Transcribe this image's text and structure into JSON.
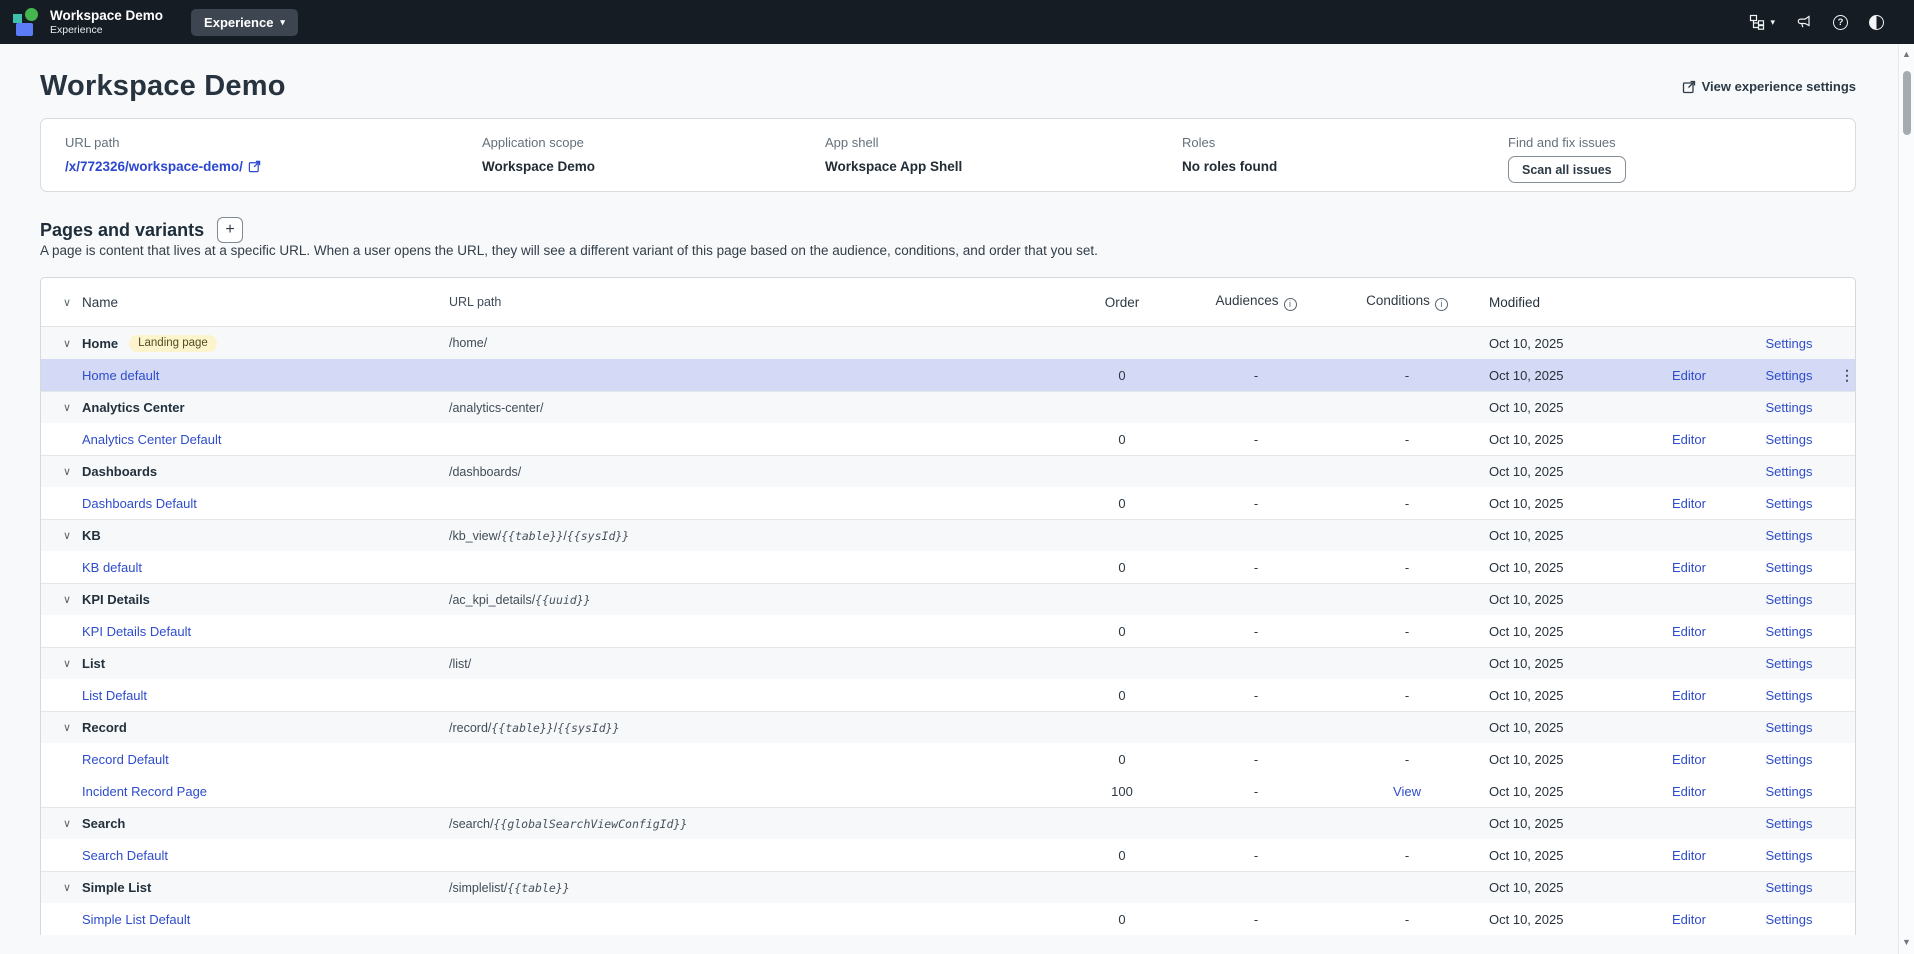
{
  "topbar": {
    "app_title": "Workspace Demo",
    "app_subtitle": "Experience",
    "experience_menu_label": "Experience"
  },
  "page": {
    "title": "Workspace Demo",
    "view_settings_label": "View experience settings"
  },
  "info_card": {
    "url_path_label": "URL path",
    "url_path_value": "/x/772326/workspace-demo/",
    "application_scope_label": "Application scope",
    "application_scope_value": "Workspace Demo",
    "app_shell_label": "App shell",
    "app_shell_value": "Workspace App Shell",
    "roles_label": "Roles",
    "roles_value": "No roles found",
    "issues_label": "Find and fix issues",
    "scan_button_label": "Scan all issues"
  },
  "section": {
    "heading": "Pages and variants",
    "add_button_label": "+",
    "description": "A page is content that lives at a specific URL. When a user opens the URL, they will see a different variant of this page based on the audience, conditions, and order that you set."
  },
  "table": {
    "columns": {
      "name": "Name",
      "url_path": "URL path",
      "order": "Order",
      "audiences": "Audiences",
      "conditions": "Conditions",
      "modified": "Modified"
    },
    "rows": [
      {
        "kind": "page",
        "name": "Home",
        "badge": "Landing page",
        "url": [
          {
            "t": "/home/"
          }
        ],
        "modified": "Oct 10, 2025",
        "settings": "Settings"
      },
      {
        "kind": "variant",
        "name": "Home default",
        "order": "0",
        "audiences": "-",
        "conditions": "-",
        "modified": "Oct 10, 2025",
        "editor": "Editor",
        "settings": "Settings",
        "selected": true,
        "kebab": true
      },
      {
        "kind": "page",
        "name": "Analytics Center",
        "url": [
          {
            "t": "/analytics-center/"
          }
        ],
        "modified": "Oct 10, 2025",
        "settings": "Settings"
      },
      {
        "kind": "variant",
        "name": "Analytics Center Default",
        "order": "0",
        "audiences": "-",
        "conditions": "-",
        "modified": "Oct 10, 2025",
        "editor": "Editor",
        "settings": "Settings"
      },
      {
        "kind": "page",
        "name": "Dashboards",
        "url": [
          {
            "t": "/dashboards/"
          }
        ],
        "modified": "Oct 10, 2025",
        "settings": "Settings"
      },
      {
        "kind": "variant",
        "name": "Dashboards Default",
        "order": "0",
        "audiences": "-",
        "conditions": "-",
        "modified": "Oct 10, 2025",
        "editor": "Editor",
        "settings": "Settings"
      },
      {
        "kind": "page",
        "name": "KB",
        "url": [
          {
            "t": "/kb_view/"
          },
          {
            "t": "{{table}}",
            "i": true
          },
          {
            "t": "/"
          },
          {
            "t": "{{sysId}}",
            "i": true
          }
        ],
        "modified": "Oct 10, 2025",
        "settings": "Settings"
      },
      {
        "kind": "variant",
        "name": "KB default",
        "order": "0",
        "audiences": "-",
        "conditions": "-",
        "modified": "Oct 10, 2025",
        "editor": "Editor",
        "settings": "Settings"
      },
      {
        "kind": "page",
        "name": "KPI Details",
        "url": [
          {
            "t": "/ac_kpi_details/"
          },
          {
            "t": "{{uuid}}",
            "i": true
          }
        ],
        "modified": "Oct 10, 2025",
        "settings": "Settings"
      },
      {
        "kind": "variant",
        "name": "KPI Details Default",
        "order": "0",
        "audiences": "-",
        "conditions": "-",
        "modified": "Oct 10, 2025",
        "editor": "Editor",
        "settings": "Settings"
      },
      {
        "kind": "page",
        "name": "List",
        "url": [
          {
            "t": "/list/"
          }
        ],
        "modified": "Oct 10, 2025",
        "settings": "Settings"
      },
      {
        "kind": "variant",
        "name": "List Default",
        "order": "0",
        "audiences": "-",
        "conditions": "-",
        "modified": "Oct 10, 2025",
        "editor": "Editor",
        "settings": "Settings"
      },
      {
        "kind": "page",
        "name": "Record",
        "url": [
          {
            "t": "/record/"
          },
          {
            "t": "{{table}}",
            "i": true
          },
          {
            "t": "/"
          },
          {
            "t": "{{sysId}}",
            "i": true
          }
        ],
        "modified": "Oct 10, 2025",
        "settings": "Settings"
      },
      {
        "kind": "variant",
        "name": "Record Default",
        "order": "0",
        "audiences": "-",
        "conditions": "-",
        "modified": "Oct 10, 2025",
        "editor": "Editor",
        "settings": "Settings"
      },
      {
        "kind": "variant",
        "name": "Incident Record Page",
        "order": "100",
        "audiences": "-",
        "conditions_link": "View",
        "modified": "Oct 10, 2025",
        "editor": "Editor",
        "settings": "Settings"
      },
      {
        "kind": "page",
        "name": "Search",
        "url": [
          {
            "t": "/search/"
          },
          {
            "t": "{{globalSearchViewConfigId}}",
            "i": true
          }
        ],
        "modified": "Oct 10, 2025",
        "settings": "Settings"
      },
      {
        "kind": "variant",
        "name": "Search Default",
        "order": "0",
        "audiences": "-",
        "conditions": "-",
        "modified": "Oct 10, 2025",
        "editor": "Editor",
        "settings": "Settings"
      },
      {
        "kind": "page",
        "name": "Simple List",
        "url": [
          {
            "t": "/simplelist/"
          },
          {
            "t": "{{table}}",
            "i": true
          }
        ],
        "modified": "Oct 10, 2025",
        "settings": "Settings"
      },
      {
        "kind": "variant",
        "name": "Simple List Default",
        "order": "0",
        "audiences": "-",
        "conditions": "-",
        "modified": "Oct 10, 2025",
        "editor": "Editor",
        "settings": "Settings"
      }
    ]
  },
  "colors": {
    "topbar_bg": "#151c23",
    "accent_link": "#2e4ccb",
    "selected_row_bg": "#d4daf5",
    "badge_bg": "#fcf4cd",
    "badge_text": "#544c1e"
  }
}
